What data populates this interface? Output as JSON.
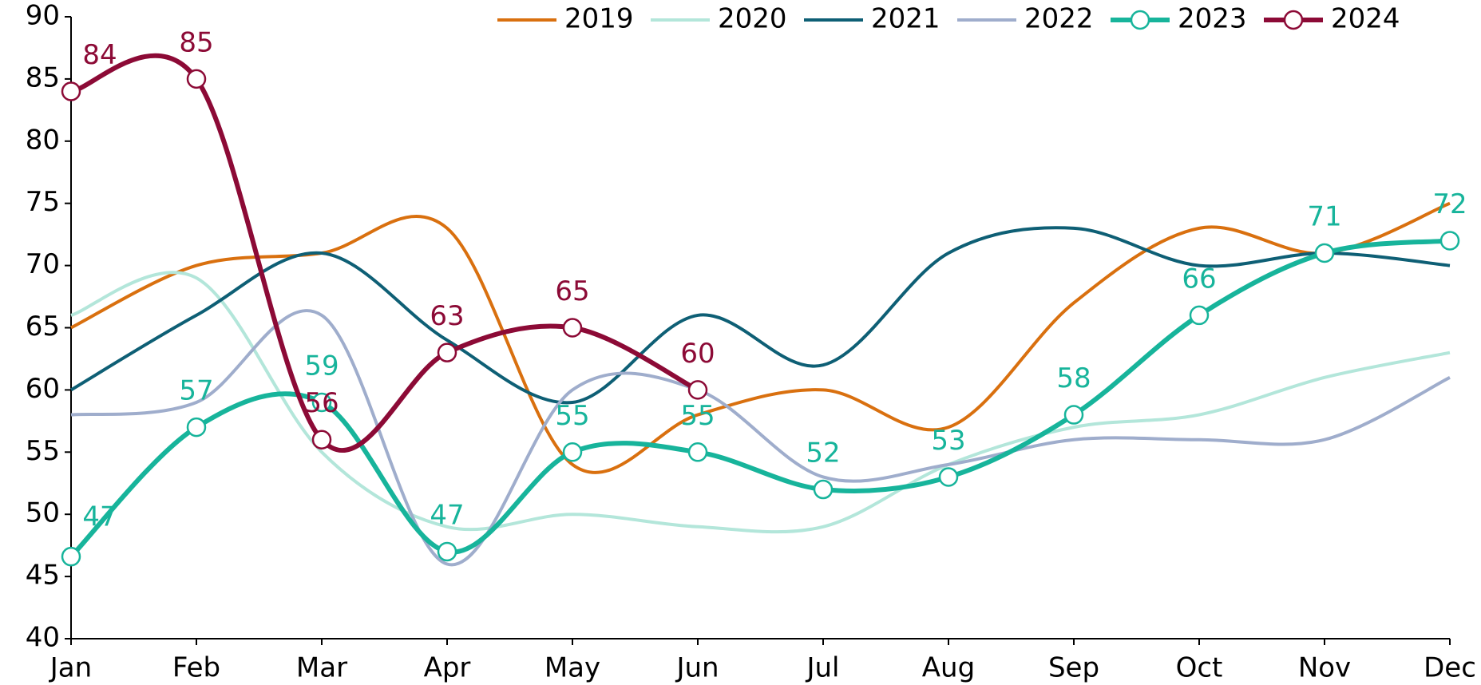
{
  "chart_data": {
    "type": "line",
    "categories": [
      "Jan",
      "Feb",
      "Mar",
      "Apr",
      "May",
      "Jun",
      "Jul",
      "Aug",
      "Sep",
      "Oct",
      "Nov",
      "Dec"
    ],
    "ylim": [
      40,
      90
    ],
    "yticks": [
      40,
      45,
      50,
      55,
      60,
      65,
      70,
      75,
      80,
      85,
      90
    ],
    "legend": "top-right",
    "series": [
      {
        "name": "2019",
        "color": "#d9700f",
        "values": [
          65,
          70,
          71,
          73,
          54,
          58,
          60,
          57,
          67,
          73,
          71,
          75
        ]
      },
      {
        "name": "2020",
        "color": "#b3e6da",
        "values": [
          66,
          69,
          55,
          49,
          50,
          49,
          49,
          54,
          57,
          58,
          61,
          63
        ]
      },
      {
        "name": "2021",
        "color": "#0e5f75",
        "values": [
          60,
          66,
          71,
          64,
          59,
          66,
          62,
          71,
          73,
          70,
          71,
          70
        ]
      },
      {
        "name": "2022",
        "color": "#9fadcc",
        "values": [
          58,
          59,
          66,
          46,
          60,
          60,
          53,
          54,
          56,
          56,
          56,
          61
        ]
      },
      {
        "name": "2023",
        "color": "#17b49b",
        "markers": true,
        "values": [
          46.6,
          57,
          59,
          47,
          55,
          55,
          52,
          53,
          58,
          66,
          71,
          72
        ],
        "value_labels": [
          "47",
          "57",
          "59",
          "47",
          "55",
          "55",
          "52",
          "53",
          "58",
          "66",
          "71",
          "72"
        ]
      },
      {
        "name": "2024",
        "color": "#8c0a36",
        "markers": true,
        "values": [
          84,
          85,
          56,
          63,
          65,
          60,
          null,
          null,
          null,
          null,
          null,
          null
        ],
        "value_labels": [
          "84",
          "85",
          "56",
          "63",
          "65",
          "60",
          null,
          null,
          null,
          null,
          null,
          null
        ]
      }
    ]
  }
}
